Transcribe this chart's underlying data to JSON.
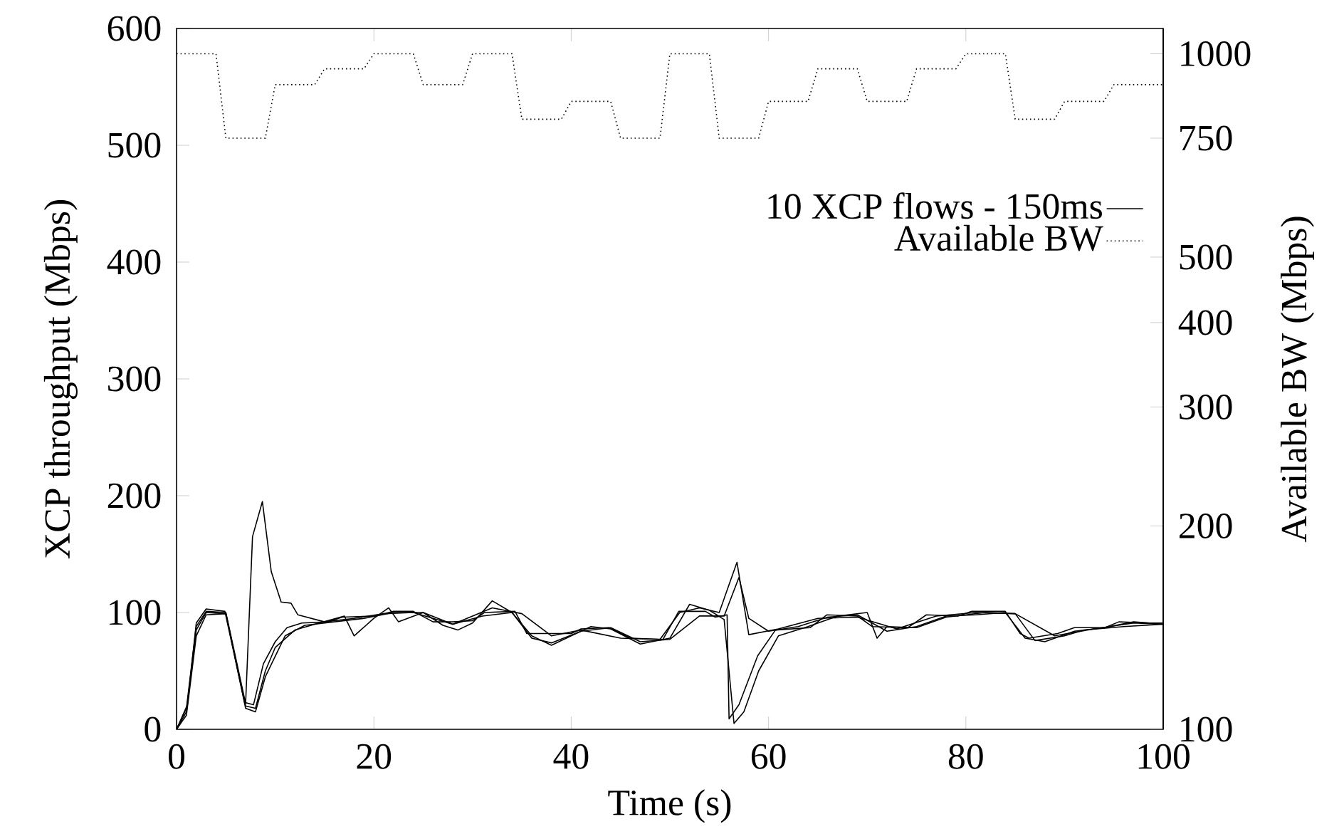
{
  "chart_data": {
    "type": "line",
    "xlabel": "Time (s)",
    "ylabel": "XCP throughput (Mbps)",
    "y2label": "Available BW (Mbps)",
    "xlim": [
      0,
      100
    ],
    "xticks": [
      0,
      20,
      40,
      60,
      80,
      100
    ],
    "ylim": [
      0,
      600
    ],
    "yticks": [
      0,
      100,
      200,
      300,
      400,
      500,
      600
    ],
    "y2lim": [
      100,
      1090
    ],
    "y2ticks": [
      100,
      200,
      300,
      400,
      500,
      750,
      1000
    ],
    "log": "y2",
    "legend": "right",
    "line_style": "solid",
    "series": [
      {
        "name": "10 XCP flows - 150ms",
        "color": "#000000",
        "x": [
          0,
          1.1,
          2,
          3,
          4.9,
          6.9,
          7.8,
          8.8,
          10,
          11.2,
          12.7,
          15.3,
          16.8,
          20.1,
          22,
          24,
          26,
          28,
          30,
          31.2,
          34.3,
          35.5,
          37.6,
          40,
          41,
          43.8,
          46,
          49.3,
          50.9,
          53.6,
          54.6,
          55.8,
          56,
          57,
          58.9,
          60.7,
          64.2,
          65.9,
          69,
          70.5,
          74.1,
          76,
          79.2,
          80.6,
          84,
          85.5,
          86.4,
          89.3,
          91,
          94.1,
          95.5,
          98.6,
          100
        ],
        "values": [
          0,
          21,
          91,
          103,
          101,
          23,
          21,
          56,
          75,
          87,
          91,
          92,
          96,
          97,
          101,
          101,
          92,
          92,
          93,
          100,
          101,
          82,
          82,
          82,
          86,
          87,
          78,
          77,
          101,
          101,
          96,
          98,
          9,
          21,
          63,
          85,
          87,
          98,
          97,
          88,
          87,
          98,
          97,
          101,
          101,
          82,
          78,
          82,
          87,
          87,
          92,
          91,
          91
        ]
      },
      {
        "color": "#000000",
        "x": [
          0,
          1,
          2,
          3,
          5,
          7,
          7.7,
          8.7,
          9.6,
          10.6,
          11.6,
          12.3,
          15,
          18,
          21,
          24,
          28,
          32,
          35,
          38,
          41,
          45,
          49,
          51,
          53,
          55,
          56.8,
          58,
          61,
          65,
          69,
          73,
          77,
          81,
          85,
          89,
          93,
          97,
          100
        ],
        "values": [
          0,
          18,
          88,
          101,
          100,
          22,
          165,
          195,
          135,
          109,
          108,
          98,
          92,
          95,
          99,
          100,
          90,
          104,
          99,
          80,
          85,
          78,
          77,
          100,
          104,
          100,
          143,
          81,
          86,
          95,
          96,
          86,
          97,
          100,
          99,
          80,
          86,
          91,
          90
        ]
      },
      {
        "color": "#000000",
        "x": [
          0,
          1,
          2,
          3,
          5,
          7,
          8,
          9,
          10,
          12,
          14,
          17,
          18,
          20,
          21.5,
          22.5,
          25,
          27,
          28.5,
          30,
          32,
          34,
          36,
          38,
          40,
          42,
          44,
          47,
          50,
          52,
          54,
          55.5,
          56.5,
          57.5,
          59,
          61,
          64,
          67,
          70,
          71,
          72,
          75,
          78,
          82,
          85,
          87,
          90,
          92,
          96,
          100
        ],
        "values": [
          0,
          15,
          85,
          100,
          99,
          20,
          18,
          50,
          70,
          85,
          90,
          97,
          80,
          95,
          104,
          92,
          100,
          89,
          85,
          91,
          110,
          100,
          80,
          72,
          80,
          88,
          86,
          73,
          78,
          107,
          102,
          94,
          5,
          15,
          50,
          80,
          88,
          97,
          100,
          78,
          88,
          87,
          96,
          100,
          99,
          76,
          80,
          85,
          88,
          90
        ]
      },
      {
        "color": "#000000",
        "x": [
          0,
          1,
          2,
          3,
          5,
          7,
          8,
          9,
          11,
          13,
          16,
          19,
          22,
          25,
          28,
          31,
          34,
          36,
          38,
          41,
          44,
          47,
          50,
          53,
          55.5,
          57,
          58,
          60,
          63,
          66,
          69,
          72,
          75,
          78,
          81,
          84,
          86,
          88,
          91,
          94,
          97,
          100
        ],
        "values": [
          0,
          12,
          80,
          98,
          99,
          18,
          15,
          45,
          80,
          89,
          92,
          95,
          100,
          100,
          90,
          97,
          100,
          78,
          74,
          84,
          87,
          75,
          77,
          97,
          97,
          130,
          95,
          84,
          88,
          96,
          98,
          84,
          88,
          97,
          98,
          100,
          78,
          75,
          84,
          87,
          92,
          90
        ]
      },
      {
        "name": "Available BW",
        "color": "#000000",
        "axis": "y2",
        "line_style": "dotted",
        "x": [
          0,
          4,
          5,
          9,
          10,
          14,
          15,
          19,
          20,
          24,
          25,
          29,
          30,
          34,
          35,
          39,
          40,
          44,
          45,
          49,
          50,
          54,
          55,
          59,
          60,
          64,
          65,
          69,
          70,
          74,
          75,
          79,
          80,
          84,
          85,
          89,
          90,
          94,
          95,
          100
        ],
        "values": [
          1000,
          1000,
          750,
          750,
          900,
          900,
          950,
          950,
          1000,
          1000,
          900,
          900,
          1000,
          1000,
          800,
          800,
          850,
          850,
          750,
          750,
          1000,
          1000,
          750,
          750,
          850,
          850,
          950,
          950,
          850,
          850,
          950,
          950,
          1000,
          1000,
          800,
          800,
          850,
          850,
          900,
          900
        ]
      }
    ]
  }
}
